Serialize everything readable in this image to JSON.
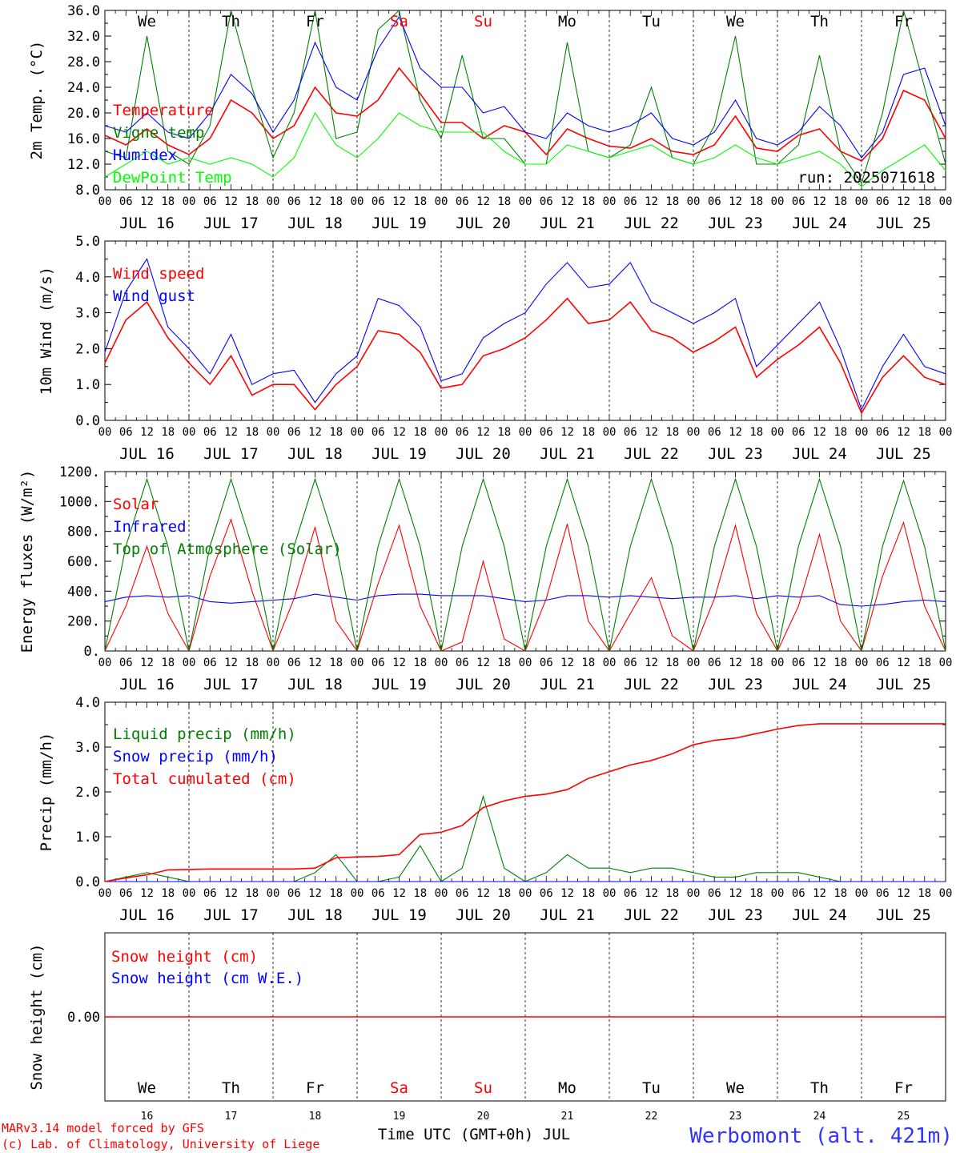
{
  "chart_data": [
    {
      "type": "line",
      "ylabel": "2m Temp. (°C)",
      "ylim": [
        8,
        36
      ],
      "yticks": [
        "8.0",
        "12.0",
        "16.0",
        "20.0",
        "24.0",
        "28.0",
        "32.0",
        "36.0"
      ],
      "annotation": "run: 2025071618",
      "x_hours": [
        0,
        6,
        12,
        18,
        24,
        30,
        36,
        42,
        48,
        54,
        60,
        66,
        72,
        78,
        84,
        90,
        96,
        102,
        108,
        114,
        120,
        126,
        132,
        138,
        144,
        150,
        156,
        162,
        168,
        174,
        180,
        186,
        192,
        198,
        204,
        210,
        216,
        222,
        228,
        234,
        240
      ],
      "series": [
        {
          "name": "Temperature",
          "color": "#ff0000",
          "values": [
            16.5,
            15,
            17.5,
            15,
            13.5,
            16,
            22,
            20,
            16,
            18,
            24,
            20,
            19.5,
            22,
            27,
            23,
            18.5,
            18.5,
            16,
            18,
            17,
            13.5,
            17.5,
            16,
            14.8,
            14.5,
            16,
            14,
            13.5,
            15,
            19.5,
            14.5,
            14,
            16.5,
            17.5,
            14,
            12.5,
            16,
            23.5,
            22,
            16
          ]
        },
        {
          "name": "Vigne temp",
          "color": "#008000",
          "values": [
            14,
            13,
            32,
            14,
            12,
            18,
            36,
            24,
            13,
            20,
            36,
            16,
            17,
            33,
            36,
            22,
            16,
            29,
            16,
            16,
            12,
            12,
            31,
            14,
            13,
            15,
            24,
            13,
            12,
            18,
            32,
            12,
            12,
            15,
            29,
            14,
            9,
            20,
            36,
            24,
            12
          ]
        },
        {
          "name": "Humidex",
          "color": "#0000ff",
          "values": [
            18,
            17,
            20,
            17,
            16,
            20,
            26,
            23,
            17,
            22,
            31,
            24,
            22,
            30,
            35,
            27,
            24,
            24,
            20,
            21,
            17,
            16,
            20,
            18,
            17,
            18,
            20,
            16,
            15,
            17,
            22,
            16,
            15,
            17,
            21,
            18,
            13,
            17,
            26,
            27,
            18
          ]
        },
        {
          "name": "DewPoint Temp",
          "color": "#00ff00",
          "values": [
            10,
            12,
            14,
            12,
            13,
            12,
            13,
            12,
            10,
            13,
            20,
            15,
            13,
            16,
            20,
            18,
            17,
            17,
            17,
            14,
            12,
            12,
            15,
            14,
            13,
            14,
            15,
            13,
            12,
            13,
            15,
            13,
            12,
            13,
            14,
            12,
            8.5,
            11,
            13,
            15,
            11
          ]
        }
      ]
    },
    {
      "type": "line",
      "ylabel": "10m Wind (m/s)",
      "ylim": [
        0,
        5
      ],
      "yticks": [
        "0.0",
        "1.0",
        "2.0",
        "3.0",
        "4.0",
        "5.0"
      ],
      "x_hours": [
        0,
        6,
        12,
        18,
        24,
        30,
        36,
        42,
        48,
        54,
        60,
        66,
        72,
        78,
        84,
        90,
        96,
        102,
        108,
        114,
        120,
        126,
        132,
        138,
        144,
        150,
        156,
        162,
        168,
        174,
        180,
        186,
        192,
        198,
        204,
        210,
        216,
        222,
        228,
        234,
        240
      ],
      "series": [
        {
          "name": "Wind speed",
          "color": "#ff0000",
          "values": [
            1.6,
            2.8,
            3.3,
            2.3,
            1.6,
            1.0,
            1.8,
            0.7,
            1.0,
            1.0,
            0.3,
            1.0,
            1.5,
            2.5,
            2.4,
            1.9,
            0.9,
            1.0,
            1.8,
            2.0,
            2.3,
            2.8,
            3.4,
            2.7,
            2.8,
            3.3,
            2.5,
            2.3,
            1.9,
            2.2,
            2.6,
            1.2,
            1.7,
            2.1,
            2.6,
            1.6,
            0.2,
            1.2,
            1.8,
            1.2,
            1.0
          ]
        },
        {
          "name": "Wind gust",
          "color": "#0000ff",
          "values": [
            1.9,
            3.6,
            4.5,
            2.6,
            2.0,
            1.3,
            2.4,
            1.0,
            1.3,
            1.4,
            0.5,
            1.3,
            1.8,
            3.4,
            3.2,
            2.6,
            1.1,
            1.3,
            2.3,
            2.7,
            3.0,
            3.8,
            4.4,
            3.7,
            3.8,
            4.4,
            3.3,
            3.0,
            2.7,
            3.0,
            3.4,
            1.5,
            2.1,
            2.7,
            3.3,
            2.0,
            0.3,
            1.5,
            2.4,
            1.5,
            1.3
          ]
        }
      ]
    },
    {
      "type": "line",
      "ylabel": "Energy fluxes (W/m²)",
      "ylim": [
        0,
        1200
      ],
      "yticks": [
        "0.",
        "200.",
        "400.",
        "600.",
        "800.",
        "1000.",
        "1200."
      ],
      "x_hours": [
        0,
        6,
        12,
        18,
        24,
        30,
        36,
        42,
        48,
        54,
        60,
        66,
        72,
        78,
        84,
        90,
        96,
        102,
        108,
        114,
        120,
        126,
        132,
        138,
        144,
        150,
        156,
        162,
        168,
        174,
        180,
        186,
        192,
        198,
        204,
        210,
        216,
        222,
        228,
        234,
        240
      ],
      "series": [
        {
          "name": "Solar",
          "color": "#ff0000",
          "values": [
            0,
            300,
            700,
            250,
            0,
            500,
            880,
            400,
            0,
            350,
            830,
            200,
            0,
            450,
            840,
            300,
            0,
            60,
            600,
            80,
            0,
            350,
            850,
            200,
            0,
            250,
            490,
            100,
            0,
            350,
            840,
            250,
            0,
            300,
            780,
            200,
            0,
            500,
            860,
            300,
            0
          ]
        },
        {
          "name": "Infrared",
          "color": "#0000ff",
          "values": [
            330,
            360,
            370,
            360,
            370,
            330,
            320,
            330,
            340,
            350,
            380,
            360,
            340,
            370,
            380,
            380,
            370,
            370,
            370,
            350,
            330,
            340,
            370,
            370,
            360,
            370,
            360,
            350,
            360,
            360,
            370,
            350,
            370,
            360,
            370,
            310,
            300,
            310,
            330,
            340,
            330
          ]
        },
        {
          "name": "Top of Atmosphere (Solar)",
          "color": "#008000",
          "values": [
            0,
            700,
            1150,
            700,
            0,
            700,
            1150,
            700,
            0,
            700,
            1150,
            700,
            0,
            700,
            1150,
            700,
            0,
            700,
            1150,
            700,
            0,
            700,
            1150,
            700,
            0,
            700,
            1150,
            700,
            0,
            700,
            1150,
            700,
            0,
            700,
            1150,
            700,
            0,
            700,
            1140,
            700,
            0
          ]
        }
      ]
    },
    {
      "type": "line",
      "ylabel": "Precip (mm/h)",
      "ylim": [
        0,
        4
      ],
      "yticks": [
        "0.0",
        "1.0",
        "2.0",
        "3.0",
        "4.0"
      ],
      "x_hours": [
        0,
        6,
        12,
        18,
        24,
        30,
        36,
        42,
        48,
        54,
        60,
        66,
        72,
        78,
        84,
        90,
        96,
        102,
        108,
        114,
        120,
        126,
        132,
        138,
        144,
        150,
        156,
        162,
        168,
        174,
        180,
        186,
        192,
        198,
        204,
        210,
        216,
        222,
        228,
        234,
        240
      ],
      "series": [
        {
          "name": "Liquid precip (mm/h)",
          "color": "#008000",
          "values": [
            0,
            0.1,
            0.2,
            0.1,
            0,
            0,
            0,
            0,
            0,
            0,
            0.2,
            0.6,
            0,
            0,
            0.1,
            0.8,
            0,
            0.3,
            1.9,
            0.3,
            0,
            0.2,
            0.6,
            0.3,
            0.3,
            0.2,
            0.3,
            0.3,
            0.2,
            0.1,
            0.1,
            0.2,
            0.2,
            0.2,
            0.1,
            0,
            0,
            0,
            0,
            0,
            0
          ]
        },
        {
          "name": "Snow precip (mm/h)",
          "color": "#0000ff",
          "values": [
            0,
            0,
            0,
            0,
            0,
            0,
            0,
            0,
            0,
            0,
            0,
            0,
            0,
            0,
            0,
            0,
            0,
            0,
            0,
            0,
            0,
            0,
            0,
            0,
            0,
            0,
            0,
            0,
            0,
            0,
            0,
            0,
            0,
            0,
            0,
            0,
            0,
            0,
            0,
            0,
            0
          ]
        },
        {
          "name": "Total cumulated (cm)",
          "color": "#ff0000",
          "values": [
            0,
            0.08,
            0.15,
            0.26,
            0.27,
            0.28,
            0.28,
            0.28,
            0.28,
            0.28,
            0.3,
            0.53,
            0.55,
            0.56,
            0.6,
            1.05,
            1.1,
            1.25,
            1.65,
            1.8,
            1.9,
            1.95,
            2.05,
            2.3,
            2.45,
            2.6,
            2.7,
            2.85,
            3.05,
            3.15,
            3.2,
            3.3,
            3.4,
            3.48,
            3.52,
            3.52,
            3.52,
            3.52,
            3.52,
            3.52,
            3.52
          ]
        }
      ]
    },
    {
      "type": "line",
      "ylabel": "Snow height (cm)",
      "yticks": [
        "0.00"
      ],
      "series": [
        {
          "name": "Snow height (cm)",
          "color": "#ff0000",
          "values": [
            0,
            0
          ]
        },
        {
          "name": "Snow height (cm W.E.)",
          "color": "#0000ff",
          "values": [
            0,
            0
          ]
        }
      ]
    }
  ],
  "hour_ticks": [
    "00",
    "06",
    "12",
    "18"
  ],
  "final_tick": "00",
  "dates": [
    "JUL 16",
    "JUL 17",
    "JUL 18",
    "JUL 19",
    "JUL 20",
    "JUL 21",
    "JUL 22",
    "JUL 23",
    "JUL 24",
    "JUL 25"
  ],
  "weekdays": [
    {
      "label": "We",
      "color": "#000000"
    },
    {
      "label": "Th",
      "color": "#000000"
    },
    {
      "label": "Fr",
      "color": "#000000"
    },
    {
      "label": "Sa",
      "color": "#ff0000"
    },
    {
      "label": "Su",
      "color": "#ff0000"
    },
    {
      "label": "Mo",
      "color": "#000000"
    },
    {
      "label": "Tu",
      "color": "#000000"
    },
    {
      "label": "We",
      "color": "#000000"
    },
    {
      "label": "Th",
      "color": "#000000"
    },
    {
      "label": "Fr",
      "color": "#000000"
    }
  ],
  "day_numbers": [
    "16",
    "17",
    "18",
    "19",
    "20",
    "21",
    "22",
    "23",
    "24",
    "25"
  ],
  "xlabel": "Time UTC (GMT+0h) JUL",
  "footer_left": [
    "MARv3.14 model forced by GFS",
    "(c) Lab. of Climatology, University of Liege"
  ],
  "station": "Werbomont (alt. 421m)"
}
